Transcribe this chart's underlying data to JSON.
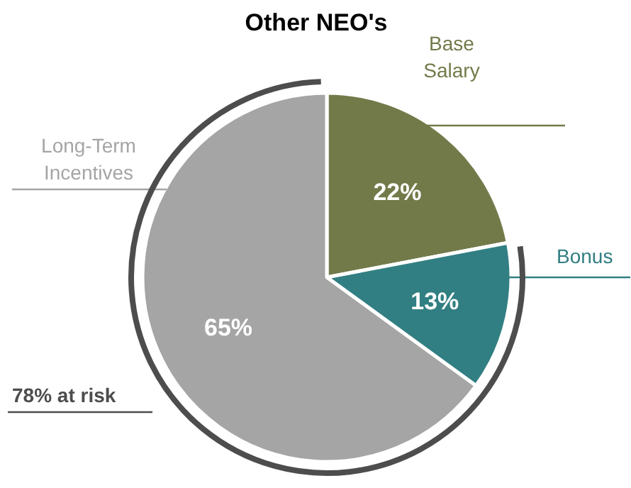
{
  "chart_data": {
    "type": "pie",
    "title": "Other NEO's",
    "categories": [
      "Base Salary",
      "Bonus",
      "Long-Term Incentives"
    ],
    "values": [
      22,
      13,
      65
    ],
    "colors": [
      "#737a4a",
      "#317f82",
      "#a5a5a5"
    ],
    "value_labels": [
      "22%",
      "13%",
      "65%"
    ],
    "annotations": [
      "78% at risk"
    ]
  }
}
